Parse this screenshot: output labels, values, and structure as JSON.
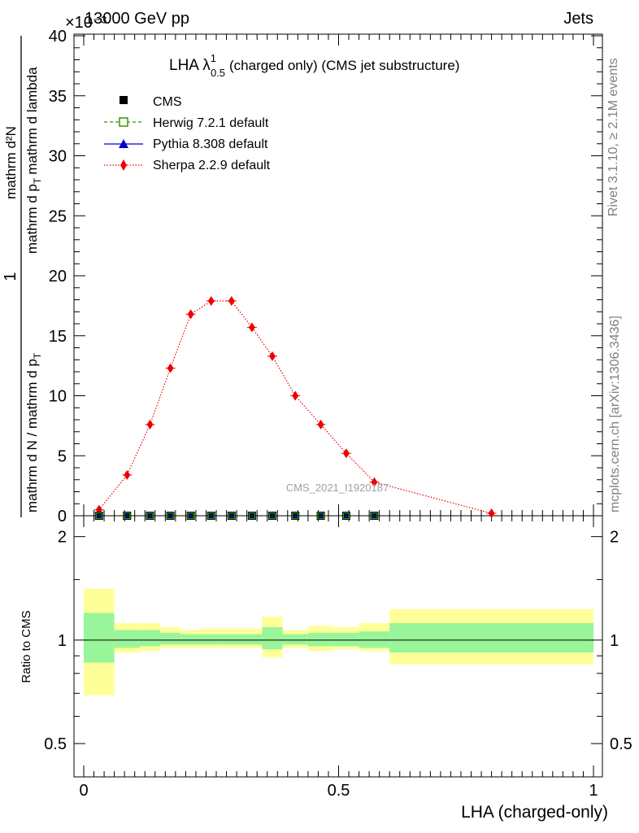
{
  "header": {
    "energy": "13000 GeV pp",
    "category": "Jets",
    "exponent": "×10⁻³"
  },
  "side_labels": {
    "rivet": "Rivet 3.1.10, ≥ 2.1M events",
    "mcplots": "mcplots.cern.ch [arXiv:1306.3436]"
  },
  "watermark": "CMS_2021_I1920187",
  "chart_data": [
    {
      "type": "line",
      "title": {
        "main": "LHA λ",
        "sup": "1",
        "sub": "0.5",
        "rest": "(charged only) (CMS jet substructure)"
      },
      "ylabel": {
        "numerator": "1",
        "denominator": "mathrm d N / mathrm d p",
        "denominator_sub": "T",
        "frac2_num": "mathrm d²N",
        "frac2_den": "mathrm d p",
        "frac2_den_sub": "T",
        "frac2_den_rest": "mathrm d lambda"
      },
      "xlim": [
        0,
        1
      ],
      "ylim": [
        0,
        40
      ],
      "y_scale_note": "×10⁻³",
      "yticks": [
        0,
        5,
        10,
        15,
        20,
        25,
        30,
        35,
        40
      ],
      "legend_position": "top-left",
      "legend": [
        {
          "label": "CMS",
          "marker": "square",
          "color": "#000000",
          "line": "none"
        },
        {
          "label": "Herwig 7.2.1 default",
          "marker": "open-square",
          "color": "#339900",
          "line": "dashed"
        },
        {
          "label": "Pythia 8.308 default",
          "marker": "triangle",
          "color": "#0000cc",
          "line": "solid"
        },
        {
          "label": "Sherpa 2.2.9 default",
          "marker": "diamond",
          "color": "#ee0000",
          "line": "dotted"
        }
      ],
      "series": [
        {
          "name": "Sherpa 2.2.9 default",
          "x": [
            0.03,
            0.085,
            0.13,
            0.17,
            0.21,
            0.25,
            0.29,
            0.33,
            0.37,
            0.415,
            0.465,
            0.515,
            0.57,
            0.8
          ],
          "y": [
            0.5,
            3.4,
            7.6,
            12.3,
            16.8,
            17.9,
            17.9,
            15.7,
            13.3,
            10.0,
            7.6,
            5.2,
            2.8,
            0.2
          ]
        },
        {
          "name": "CMS / Herwig 7.2.1 default / Pythia 8.308 default",
          "x": [
            0.03,
            0.085,
            0.13,
            0.17,
            0.21,
            0.25,
            0.29,
            0.33,
            0.37,
            0.415,
            0.465,
            0.515,
            0.57
          ],
          "y": [
            0,
            0,
            0,
            0,
            0,
            0,
            0,
            0,
            0,
            0,
            0,
            0,
            0
          ]
        }
      ]
    },
    {
      "type": "area",
      "ylabel": "Ratio to CMS",
      "xlabel": "LHA (charged-only)",
      "xlim": [
        0,
        1
      ],
      "ylim": [
        0.4,
        2.3
      ],
      "y_scale": "log",
      "yticks": [
        0.5,
        1,
        2
      ],
      "xticks": [
        0,
        0.5,
        1
      ],
      "reference_line": 1,
      "bins": [
        {
          "lo": 0.0,
          "hi": 0.06,
          "inner": [
            0.86,
            1.2
          ],
          "outer": [
            0.69,
            1.41
          ]
        },
        {
          "lo": 0.06,
          "hi": 0.11,
          "inner": [
            0.95,
            1.07
          ],
          "outer": [
            0.92,
            1.12
          ]
        },
        {
          "lo": 0.11,
          "hi": 0.15,
          "inner": [
            0.96,
            1.07
          ],
          "outer": [
            0.93,
            1.12
          ]
        },
        {
          "lo": 0.15,
          "hi": 0.19,
          "inner": [
            0.97,
            1.05
          ],
          "outer": [
            0.95,
            1.09
          ]
        },
        {
          "lo": 0.19,
          "hi": 0.23,
          "inner": [
            0.97,
            1.04
          ],
          "outer": [
            0.95,
            1.07
          ]
        },
        {
          "lo": 0.23,
          "hi": 0.27,
          "inner": [
            0.97,
            1.04
          ],
          "outer": [
            0.95,
            1.08
          ]
        },
        {
          "lo": 0.27,
          "hi": 0.31,
          "inner": [
            0.97,
            1.04
          ],
          "outer": [
            0.95,
            1.08
          ]
        },
        {
          "lo": 0.31,
          "hi": 0.35,
          "inner": [
            0.97,
            1.04
          ],
          "outer": [
            0.95,
            1.08
          ]
        },
        {
          "lo": 0.35,
          "hi": 0.39,
          "inner": [
            0.94,
            1.09
          ],
          "outer": [
            0.89,
            1.17
          ]
        },
        {
          "lo": 0.39,
          "hi": 0.44,
          "inner": [
            0.97,
            1.04
          ],
          "outer": [
            0.95,
            1.07
          ]
        },
        {
          "lo": 0.44,
          "hi": 0.49,
          "inner": [
            0.96,
            1.05
          ],
          "outer": [
            0.93,
            1.1
          ]
        },
        {
          "lo": 0.49,
          "hi": 0.54,
          "inner": [
            0.96,
            1.05
          ],
          "outer": [
            0.94,
            1.09
          ]
        },
        {
          "lo": 0.54,
          "hi": 0.6,
          "inner": [
            0.95,
            1.06
          ],
          "outer": [
            0.93,
            1.12
          ]
        },
        {
          "lo": 0.6,
          "hi": 1.0,
          "inner": [
            0.92,
            1.12
          ],
          "outer": [
            0.85,
            1.23
          ]
        }
      ],
      "colors": {
        "inner": "#99f599",
        "outer": "#ffff99"
      }
    }
  ]
}
